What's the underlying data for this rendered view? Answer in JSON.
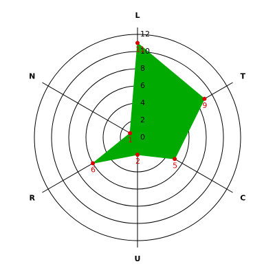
{
  "chart_data": {
    "type": "radar",
    "categories": [
      "L",
      "T",
      "C",
      "U",
      "R",
      "N"
    ],
    "values": [
      11,
      9,
      5,
      2,
      6,
      1
    ],
    "color": "#00aa00",
    "marker_color": "#dd0000",
    "ylim": [
      0,
      12
    ],
    "yticks": [
      0,
      2,
      4,
      6,
      8,
      10,
      12
    ],
    "grid": true
  }
}
